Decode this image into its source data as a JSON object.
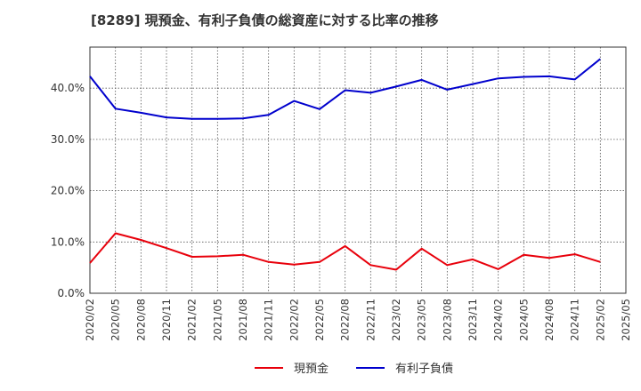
{
  "chart_data": {
    "type": "line",
    "title": "[8289]  現預金、有利子負債の総資産に対する比率の推移",
    "xlabel": "",
    "ylabel": "",
    "ylim": [
      0,
      48
    ],
    "yticks": [
      0,
      10,
      20,
      30,
      40
    ],
    "ytick_labels": [
      "0.0%",
      "10.0%",
      "20.0%",
      "30.0%",
      "40.0%"
    ],
    "x": [
      "2020/02",
      "2020/05",
      "2020/08",
      "2020/11",
      "2021/02",
      "2021/05",
      "2021/08",
      "2021/11",
      "2022/02",
      "2022/05",
      "2022/08",
      "2022/11",
      "2023/02",
      "2023/05",
      "2023/08",
      "2023/11",
      "2024/02",
      "2024/05",
      "2024/08",
      "2024/11",
      "2025/02",
      "2025/05"
    ],
    "grid": true,
    "series": [
      {
        "name": "現預金",
        "color": "#e8000b",
        "values": [
          5.9,
          11.7,
          10.4,
          8.8,
          7.1,
          7.2,
          7.5,
          6.1,
          5.6,
          6.1,
          9.2,
          5.5,
          4.6,
          8.7,
          5.5,
          6.6,
          4.7,
          7.5,
          6.9,
          7.6,
          6.1,
          null
        ]
      },
      {
        "name": "有利子負債",
        "color": "#0000cd",
        "values": [
          42.3,
          36.0,
          35.2,
          34.3,
          34.0,
          34.0,
          34.1,
          34.8,
          37.5,
          35.9,
          39.6,
          39.1,
          40.3,
          41.6,
          39.7,
          40.8,
          41.9,
          42.2,
          42.3,
          41.7,
          45.7,
          null
        ]
      }
    ],
    "legend": "bottom-center"
  }
}
